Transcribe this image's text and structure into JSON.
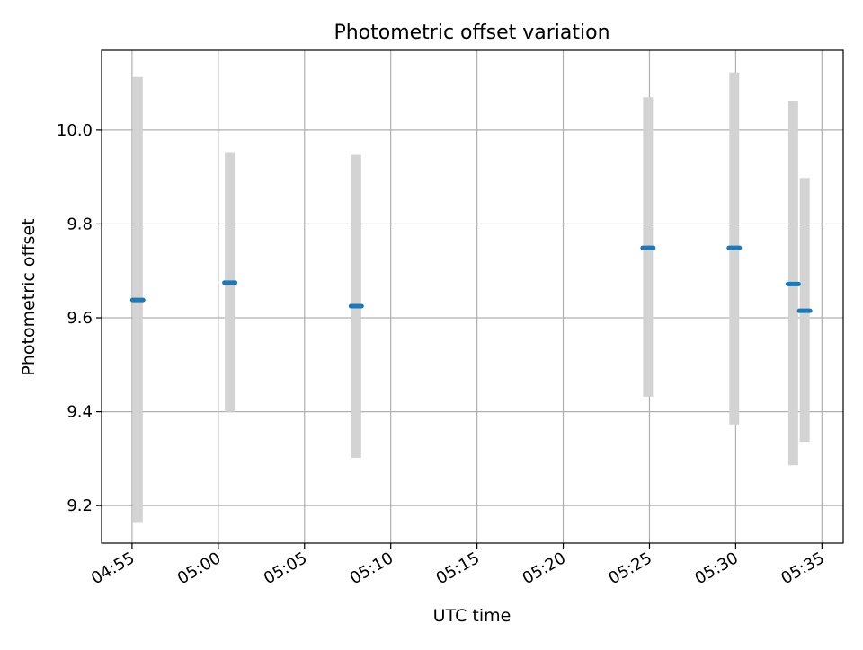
{
  "chart_data": {
    "type": "scatter",
    "title": "Photometric offset variation",
    "xlabel": "UTC time",
    "ylabel": "Photometric offset",
    "grid": true,
    "xlim": [
      "04:53:14",
      "05:36:14"
    ],
    "ylim": [
      9.12,
      10.17
    ],
    "x_ticks": [
      "04:55",
      "05:00",
      "05:05",
      "05:10",
      "05:15",
      "05:20",
      "05:25",
      "05:30",
      "05:35"
    ],
    "y_ticks": [
      "9.2",
      "9.4",
      "9.6",
      "9.8",
      "10.0"
    ],
    "colors": {
      "marker": "#1f77b4",
      "errorbar": "#d3d3d3",
      "grid": "#b0b0b0"
    },
    "series": [
      {
        "points": [
          {
            "x": "04:55:20",
            "y": 9.638,
            "yerr_low": 9.165,
            "yerr_high": 10.113
          },
          {
            "x": "05:00:40",
            "y": 9.675,
            "yerr_low": 9.4,
            "yerr_high": 9.953
          },
          {
            "x": "05:08:00",
            "y": 9.625,
            "yerr_low": 9.302,
            "yerr_high": 9.947
          },
          {
            "x": "05:24:55",
            "y": 9.749,
            "yerr_low": 9.432,
            "yerr_high": 10.07
          },
          {
            "x": "05:29:55",
            "y": 9.749,
            "yerr_low": 9.373,
            "yerr_high": 10.123
          },
          {
            "x": "05:33:20",
            "y": 9.672,
            "yerr_low": 9.286,
            "yerr_high": 10.062
          },
          {
            "x": "05:34:00",
            "y": 9.615,
            "yerr_low": 9.336,
            "yerr_high": 9.898
          }
        ]
      }
    ]
  }
}
